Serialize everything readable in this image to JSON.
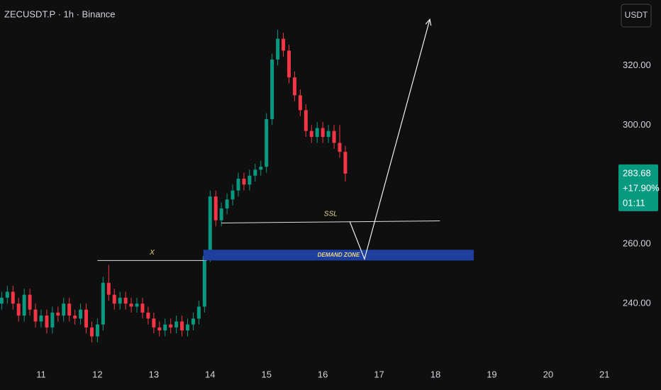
{
  "chart_data": {
    "type": "candlestick",
    "title": "ZECUSDT.P · 1h · Binance",
    "currency": "USDT",
    "x": [
      10.3,
      10.4,
      10.5,
      10.6,
      10.7,
      10.8,
      10.9,
      11.0,
      11.1,
      11.2,
      11.3,
      11.4,
      11.5,
      11.6,
      11.7,
      11.8,
      11.9,
      12.0,
      12.1,
      12.2,
      12.3,
      12.4,
      12.5,
      12.6,
      12.7,
      12.8,
      12.9,
      13.0,
      13.1,
      13.2,
      13.3,
      13.4,
      13.5,
      13.6,
      13.7,
      13.8,
      13.9,
      14.0,
      14.1,
      14.2,
      14.3,
      14.4,
      14.5,
      14.6,
      14.7,
      14.8,
      14.9,
      15.0,
      15.1,
      15.2,
      15.3,
      15.4,
      15.5,
      15.6,
      15.7,
      15.8,
      15.9,
      16.0,
      16.1,
      16.2,
      16.3,
      16.4
    ],
    "open": [
      240,
      242,
      244,
      240,
      236,
      243,
      238,
      234,
      236,
      232,
      237,
      236,
      240,
      236,
      235,
      238,
      232,
      229,
      233,
      247,
      243,
      240,
      242,
      240,
      239,
      240,
      237,
      235,
      232,
      231,
      233,
      232,
      234,
      231,
      233,
      235,
      239,
      256,
      276,
      268,
      272,
      275,
      278,
      282,
      280,
      283,
      285,
      286,
      302,
      322,
      329,
      325,
      316,
      310,
      305,
      298,
      296,
      299,
      296,
      298,
      294,
      291
    ],
    "high": [
      244,
      246,
      246,
      242,
      245,
      245,
      240,
      238,
      238,
      239,
      239,
      242,
      242,
      238,
      240,
      240,
      234,
      235,
      249,
      253,
      245,
      244,
      244,
      242,
      242,
      242,
      239,
      237,
      234,
      235,
      235,
      236,
      236,
      235,
      237,
      241,
      258,
      278,
      278,
      274,
      277,
      280,
      284,
      284,
      285,
      287,
      288,
      304,
      324,
      332,
      331,
      327,
      318,
      312,
      307,
      300,
      301,
      301,
      300,
      300,
      300,
      293
    ],
    "low": [
      238,
      240,
      238,
      234,
      234,
      236,
      232,
      232,
      230,
      230,
      234,
      234,
      234,
      233,
      233,
      230,
      227,
      227,
      231,
      241,
      238,
      238,
      238,
      237,
      237,
      235,
      233,
      230,
      229,
      229,
      230,
      230,
      229,
      229,
      231,
      233,
      237,
      254,
      266,
      266,
      270,
      273,
      276,
      278,
      278,
      281,
      283,
      284,
      300,
      320,
      323,
      314,
      308,
      303,
      296,
      294,
      294,
      294,
      294,
      292,
      289,
      281
    ],
    "close": [
      242,
      244,
      240,
      236,
      243,
      238,
      234,
      236,
      232,
      237,
      236,
      240,
      236,
      235,
      238,
      232,
      229,
      233,
      247,
      243,
      240,
      242,
      240,
      239,
      240,
      237,
      235,
      232,
      231,
      233,
      232,
      234,
      231,
      233,
      235,
      239,
      256,
      276,
      268,
      272,
      275,
      278,
      282,
      280,
      283,
      285,
      286,
      302,
      322,
      329,
      325,
      316,
      310,
      305,
      298,
      296,
      299,
      296,
      298,
      294,
      291,
      283.68
    ],
    "up_color": "#089981",
    "down_color": "#f23645",
    "xlim": [
      10.27,
      21.16
    ],
    "xticks": [
      11,
      12,
      13,
      14,
      15,
      16,
      17,
      18,
      19,
      20,
      21
    ],
    "ylim": [
      221,
      342
    ],
    "yticks": [
      {
        "value": 240,
        "label": "240.00"
      },
      {
        "value": 260,
        "label": "260.00"
      },
      {
        "value": 300,
        "label": "300.00"
      },
      {
        "value": 320,
        "label": "320.00"
      }
    ],
    "price_label": {
      "value": 283.68,
      "label": "283.68",
      "change": "+17.90%",
      "countdown": "01:11"
    },
    "annotations": [
      {
        "text": "X",
        "x": [
          12.0,
          13.94
        ],
        "y": [
          254.5,
          254.5
        ]
      },
      {
        "text": "SSL",
        "x": [
          14.2,
          18.08
        ],
        "y": [
          267.1,
          267.8
        ]
      },
      {
        "text": "DEMAND ZONE",
        "x": [
          13.88,
          18.68
        ],
        "y": [
          254.5,
          258.1
        ],
        "color": "#1f3f9e"
      }
    ],
    "arrow": {
      "x": [
        16.48,
        16.74,
        17.9
      ],
      "y": [
        267.5,
        255,
        335.5
      ]
    }
  }
}
